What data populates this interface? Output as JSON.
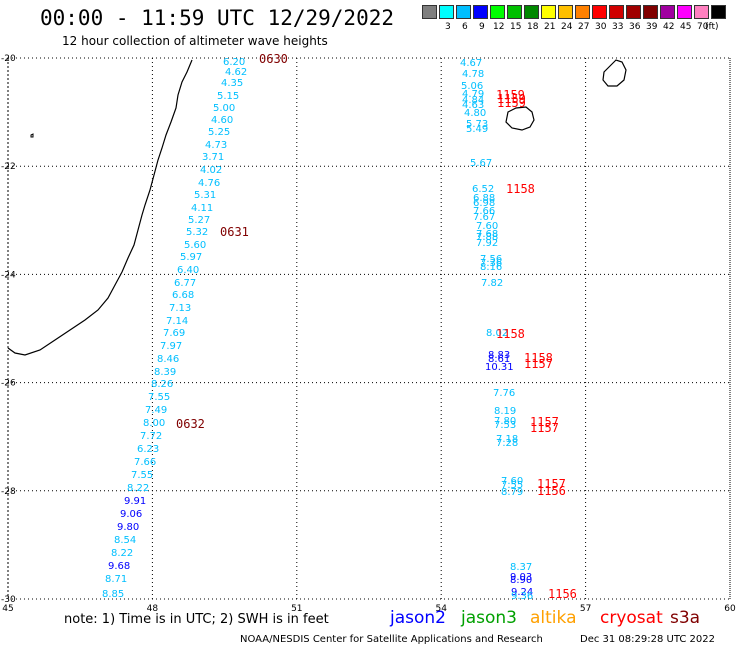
{
  "header": {
    "title": "00:00 - 11:59 UTC 12/29/2022",
    "subtitle": "12 hour collection of altimeter wave heights"
  },
  "color_scale": {
    "unit_label": "(ft)",
    "swatches": [
      {
        "color": "#7f7f7f",
        "label": ""
      },
      {
        "color": "#00ffff",
        "label": "3"
      },
      {
        "color": "#00bfff",
        "label": "6"
      },
      {
        "color": "#0000ff",
        "label": "9"
      },
      {
        "color": "#00ff00",
        "label": "12"
      },
      {
        "color": "#00c000",
        "label": "15"
      },
      {
        "color": "#008800",
        "label": "18"
      },
      {
        "color": "#ffff00",
        "label": "21"
      },
      {
        "color": "#ffc000",
        "label": "24"
      },
      {
        "color": "#ff8000",
        "label": "27"
      },
      {
        "color": "#ff0000",
        "label": "30"
      },
      {
        "color": "#d00000",
        "label": "33"
      },
      {
        "color": "#a00000",
        "label": "36"
      },
      {
        "color": "#800000",
        "label": "39"
      },
      {
        "color": "#a000a0",
        "label": "42"
      },
      {
        "color": "#ff00ff",
        "label": "45"
      },
      {
        "color": "#ff80c0",
        "label": "70"
      },
      {
        "color": "#000000",
        "label": ""
      }
    ]
  },
  "axes": {
    "lat_ticks": [
      "-20",
      "-22",
      "-24",
      "-26",
      "-28",
      "-30"
    ],
    "lon_ticks": [
      "45",
      "48",
      "51",
      "54",
      "57",
      "60"
    ],
    "lat_range": [
      -30,
      -20
    ],
    "lon_range": [
      45,
      60
    ],
    "grid": "dotted"
  },
  "track_west": {
    "values": [
      "6.20",
      "4.62",
      "4.35",
      "5.15",
      "5.00",
      "4.60",
      "5.25",
      "4.73",
      "3.71",
      "4.02",
      "4.76",
      "5.31",
      "4.11",
      "5.27",
      "5.32",
      "5.60",
      "5.97",
      "6.40",
      "6.77",
      "6.68",
      "7.13",
      "7.14",
      "7.69",
      "7.97",
      "8.46",
      "8.39",
      "8.26",
      "7.55",
      "7.49",
      "8.00",
      "7.72",
      "6.23",
      "7.66",
      "7.55",
      "8.22",
      "9.91",
      "9.06",
      "9.80",
      "8.54",
      "8.22",
      "9.68",
      "8.71",
      "8.85"
    ],
    "colors": [
      "#00bfff",
      "#00bfff",
      "#00bfff",
      "#00bfff",
      "#00bfff",
      "#00bfff",
      "#00bfff",
      "#00bfff",
      "#00bfff",
      "#00bfff",
      "#00bfff",
      "#00bfff",
      "#00bfff",
      "#00bfff",
      "#00bfff",
      "#00bfff",
      "#00bfff",
      "#00bfff",
      "#00bfff",
      "#00bfff",
      "#00bfff",
      "#00bfff",
      "#00bfff",
      "#00bfff",
      "#00bfff",
      "#00bfff",
      "#00bfff",
      "#00bfff",
      "#00bfff",
      "#00bfff",
      "#00bfff",
      "#00bfff",
      "#00bfff",
      "#00bfff",
      "#00bfff",
      "#0000ff",
      "#0000ff",
      "#0000ff",
      "#00bfff",
      "#00bfff",
      "#0000ff",
      "#00bfff",
      "#00bfff"
    ],
    "pass_labels": [
      "0630",
      "0631",
      "0632"
    ],
    "pass_color": "#800000"
  },
  "track_east": {
    "values": [
      "4.67",
      "4.78",
      "5.06",
      "4.79",
      "4.84",
      "4.63",
      "4.80",
      "5.73",
      "5.49",
      "5.67",
      "6.52",
      "6.88",
      "6.98",
      "7.66",
      "7.67",
      "7.60",
      "7.68",
      "7.88",
      "7.92",
      "7.56",
      "7.36",
      "8.16",
      "7.82",
      "8.02",
      "8.83",
      "8.61",
      "10.31",
      "7.76",
      "8.19",
      "7.80",
      "7.53",
      "7.18",
      "7.28",
      "7.60",
      "7.55",
      "8.79",
      "8.37",
      "9.03",
      "8.90",
      "9.24",
      "9.36"
    ],
    "colors": [
      "#00bfff",
      "#00bfff",
      "#00bfff",
      "#00bfff",
      "#00bfff",
      "#00bfff",
      "#00bfff",
      "#00bfff",
      "#00bfff",
      "#00bfff",
      "#00bfff",
      "#00bfff",
      "#00bfff",
      "#00bfff",
      "#00bfff",
      "#00bfff",
      "#00bfff",
      "#00bfff",
      "#00bfff",
      "#00bfff",
      "#00bfff",
      "#00bfff",
      "#00bfff",
      "#00bfff",
      "#0000ff",
      "#0000ff",
      "#0000ff",
      "#00bfff",
      "#00bfff",
      "#00bfff",
      "#00bfff",
      "#00bfff",
      "#00bfff",
      "#00bfff",
      "#00bfff",
      "#00bfff",
      "#00bfff",
      "#0000ff",
      "#0000ff",
      "#0000ff",
      "#00bfff"
    ],
    "pass_labels": [
      "1159",
      "1159",
      "1159",
      "1158",
      "1158",
      "1158",
      "1157",
      "1157",
      "1157",
      "1157",
      "1156",
      "1156"
    ],
    "pass_color": "#ff0000"
  },
  "footer": {
    "note": "note: 1) Time is in UTC; 2) SWH is in feet",
    "satellites": [
      {
        "name": "jason2",
        "color": "#0000ff"
      },
      {
        "name": "jason3",
        "color": "#00a000"
      },
      {
        "name": "altika",
        "color": "#ffa000"
      },
      {
        "name": "cryosat",
        "color": "#ff0000"
      },
      {
        "name": "s3a",
        "color": "#800000"
      }
    ],
    "credit": "NOAA/NESDIS Center for Satellite Applications and Research",
    "timestamp": "Dec 31 08:29:28 UTC 2022"
  }
}
